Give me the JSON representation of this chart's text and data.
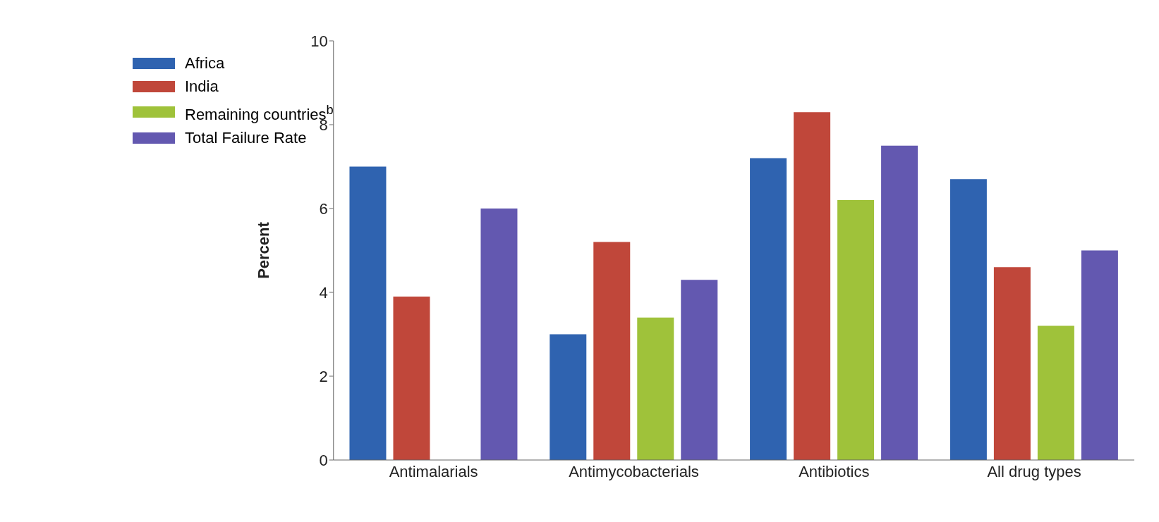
{
  "chart_data": {
    "type": "bar",
    "ylabel": "Percent",
    "categories": [
      "Antimalarials",
      "Antimycobacterials",
      "Antibiotics",
      "All drug types"
    ],
    "series": [
      {
        "name": "Africa",
        "color": "#2f63b0",
        "values": [
          7.0,
          3.0,
          7.2,
          6.7
        ]
      },
      {
        "name": "India",
        "color": "#c0473a",
        "values": [
          3.9,
          5.2,
          8.3,
          4.6
        ]
      },
      {
        "name": "Remaining countries$^{b}$",
        "color": "#9fc23a",
        "values": [
          null,
          3.4,
          6.2,
          3.2
        ]
      },
      {
        "name": "Total Failure Rate",
        "color": "#6358b0",
        "values": [
          6.0,
          4.3,
          7.5,
          5.0
        ]
      }
    ],
    "ylim": [
      0,
      10
    ],
    "yticks": [
      0,
      2,
      4,
      6,
      8,
      10
    ],
    "grid": false,
    "legend": "top left"
  }
}
